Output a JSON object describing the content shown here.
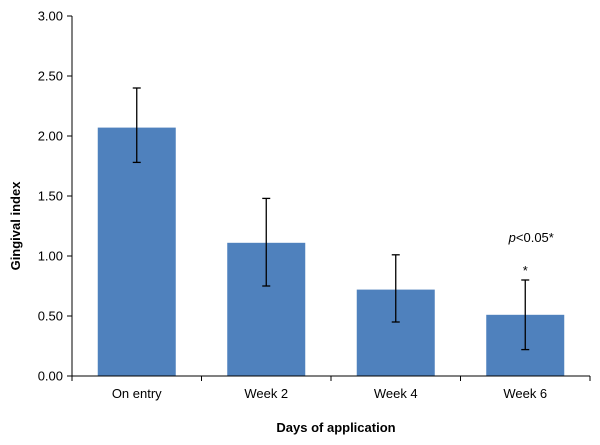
{
  "chart_data": {
    "type": "bar",
    "title": "",
    "xlabel": "Days of application",
    "ylabel": "Gingival index",
    "categories": [
      "On entry",
      "Week 2",
      "Week 4",
      "Week 6"
    ],
    "values": [
      2.07,
      1.11,
      0.72,
      0.51
    ],
    "error_lower": [
      1.78,
      0.75,
      0.45,
      0.22
    ],
    "error_upper": [
      2.4,
      1.48,
      1.01,
      0.8
    ],
    "ylim": [
      0,
      3
    ],
    "yticks": [
      0,
      0.5,
      1,
      1.5,
      2,
      2.5,
      3
    ],
    "ytick_labels": [
      "0.00",
      "0.50",
      "1.00",
      "1.50",
      "2.00",
      "2.50",
      "3.00"
    ],
    "grid": false,
    "legend": "none",
    "bar_color": "#4f81bd",
    "annotations": {
      "significance_marker": "*",
      "significance_marker_category": "Week 6",
      "pvalue_prefix": "p",
      "pvalue_suffix": "<0.05*"
    }
  }
}
